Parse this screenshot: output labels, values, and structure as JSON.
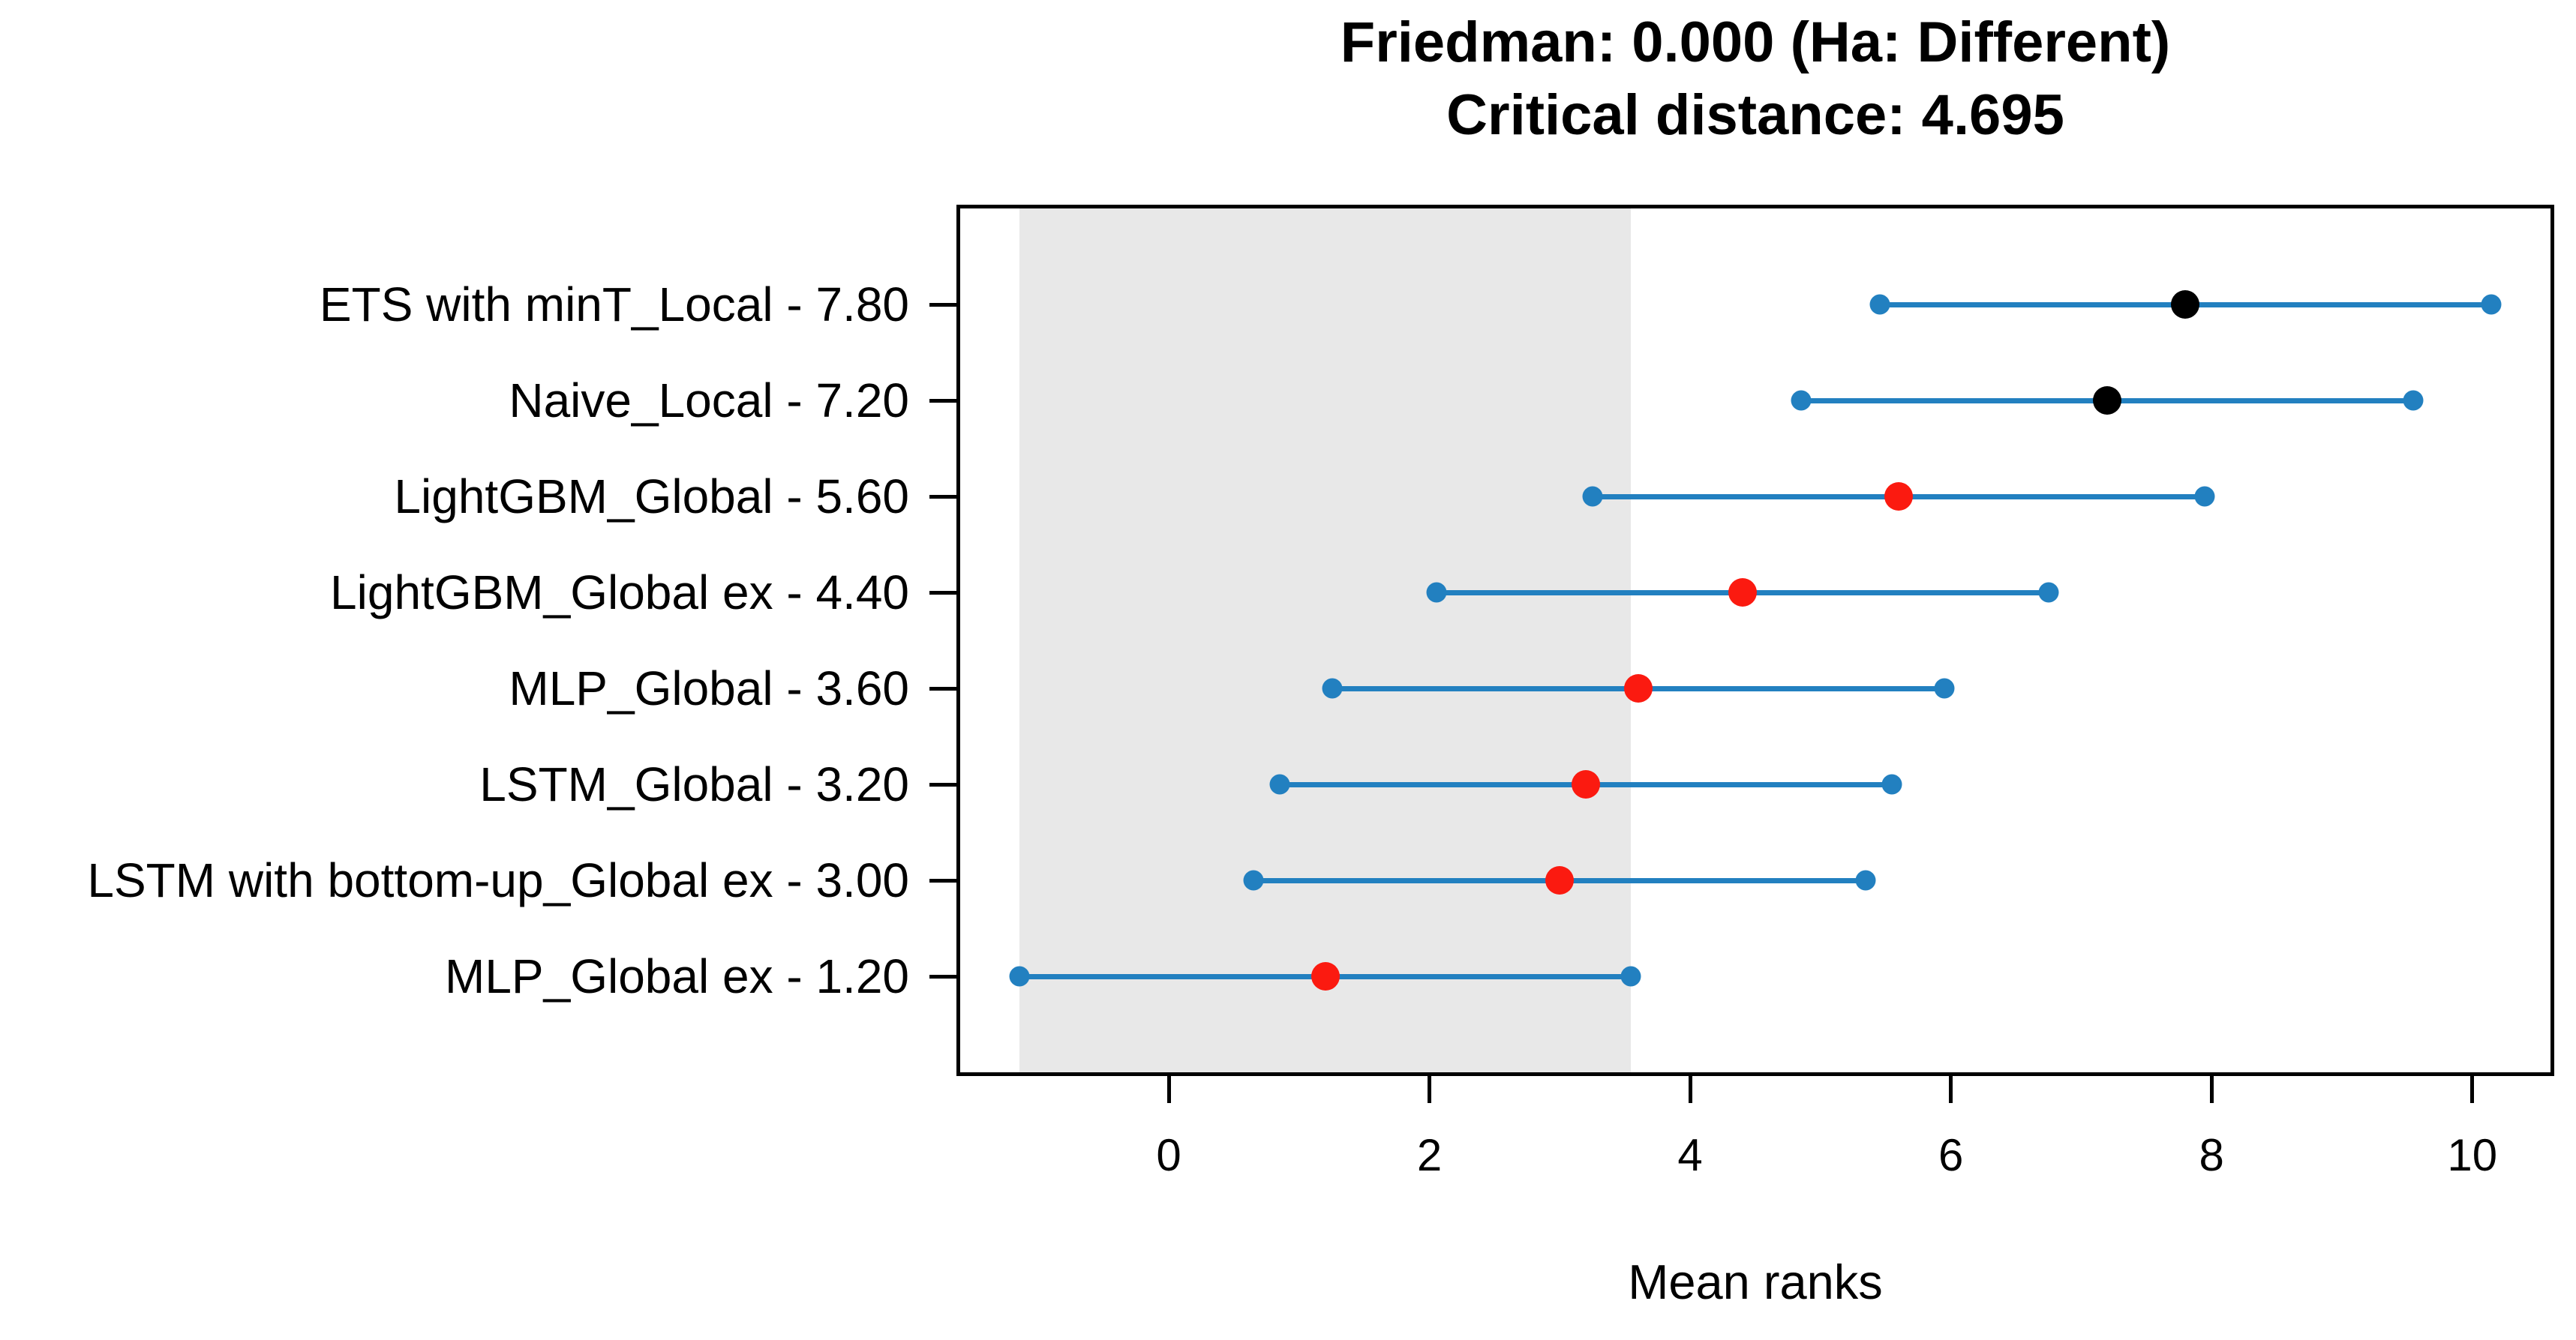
{
  "title": {
    "line1": "Friedman: 0.000 (Ha: Different)",
    "line2": "Critical distance: 4.695"
  },
  "chart_data": {
    "type": "scatter",
    "subtype": "critical-difference-diagram",
    "title": "Friedman: 0.000 (Ha: Different)",
    "subtitle": "Critical distance: 4.695",
    "friedman_p_value": "0.000",
    "alternative_hypothesis": "Different",
    "critical_distance": 4.695,
    "xlabel": "Mean ranks",
    "ylabel": "",
    "xlim": [
      -1.6,
      10.6
    ],
    "x_ticks": [
      0,
      2,
      4,
      6,
      8,
      10
    ],
    "grid": false,
    "legend": false,
    "shaded_region": [
      -1.1475,
      3.5475
    ],
    "series": [
      {
        "label": "ETS with minT_Local - 7.80",
        "name": "ETS with minT_Local",
        "mean_rank": 7.8,
        "interval": [
          5.4525,
          10.1475
        ],
        "marker": "black"
      },
      {
        "label": "Naive_Local - 7.20",
        "name": "Naive_Local",
        "mean_rank": 7.2,
        "interval": [
          4.8525,
          9.5475
        ],
        "marker": "black"
      },
      {
        "label": "LightGBM_Global - 5.60",
        "name": "LightGBM_Global",
        "mean_rank": 5.6,
        "interval": [
          3.2525,
          7.9475
        ],
        "marker": "red"
      },
      {
        "label": "LightGBM_Global ex - 4.40",
        "name": "LightGBM_Global ex",
        "mean_rank": 4.4,
        "interval": [
          2.0525,
          6.7475
        ],
        "marker": "red"
      },
      {
        "label": "MLP_Global - 3.60",
        "name": "MLP_Global",
        "mean_rank": 3.6,
        "interval": [
          1.2525,
          5.9475
        ],
        "marker": "red"
      },
      {
        "label": "LSTM_Global - 3.20",
        "name": "LSTM_Global",
        "mean_rank": 3.2,
        "interval": [
          0.8525,
          5.5475
        ],
        "marker": "red"
      },
      {
        "label": "LSTM with bottom-up_Global ex - 3.00",
        "name": "LSTM with bottom-up_Global ex",
        "mean_rank": 3.0,
        "interval": [
          0.6525,
          5.3475
        ],
        "marker": "red"
      },
      {
        "label": "MLP_Global ex - 1.20",
        "name": "MLP_Global ex",
        "mean_rank": 1.2,
        "interval": [
          -1.1475,
          3.5475
        ],
        "marker": "red"
      }
    ],
    "colors": {
      "interval_blue": "#2280c0",
      "marker_black": "#000000",
      "marker_red": "#fb1a10",
      "shade_gray": "#e8e8e8",
      "axis_black": "#000000"
    }
  }
}
